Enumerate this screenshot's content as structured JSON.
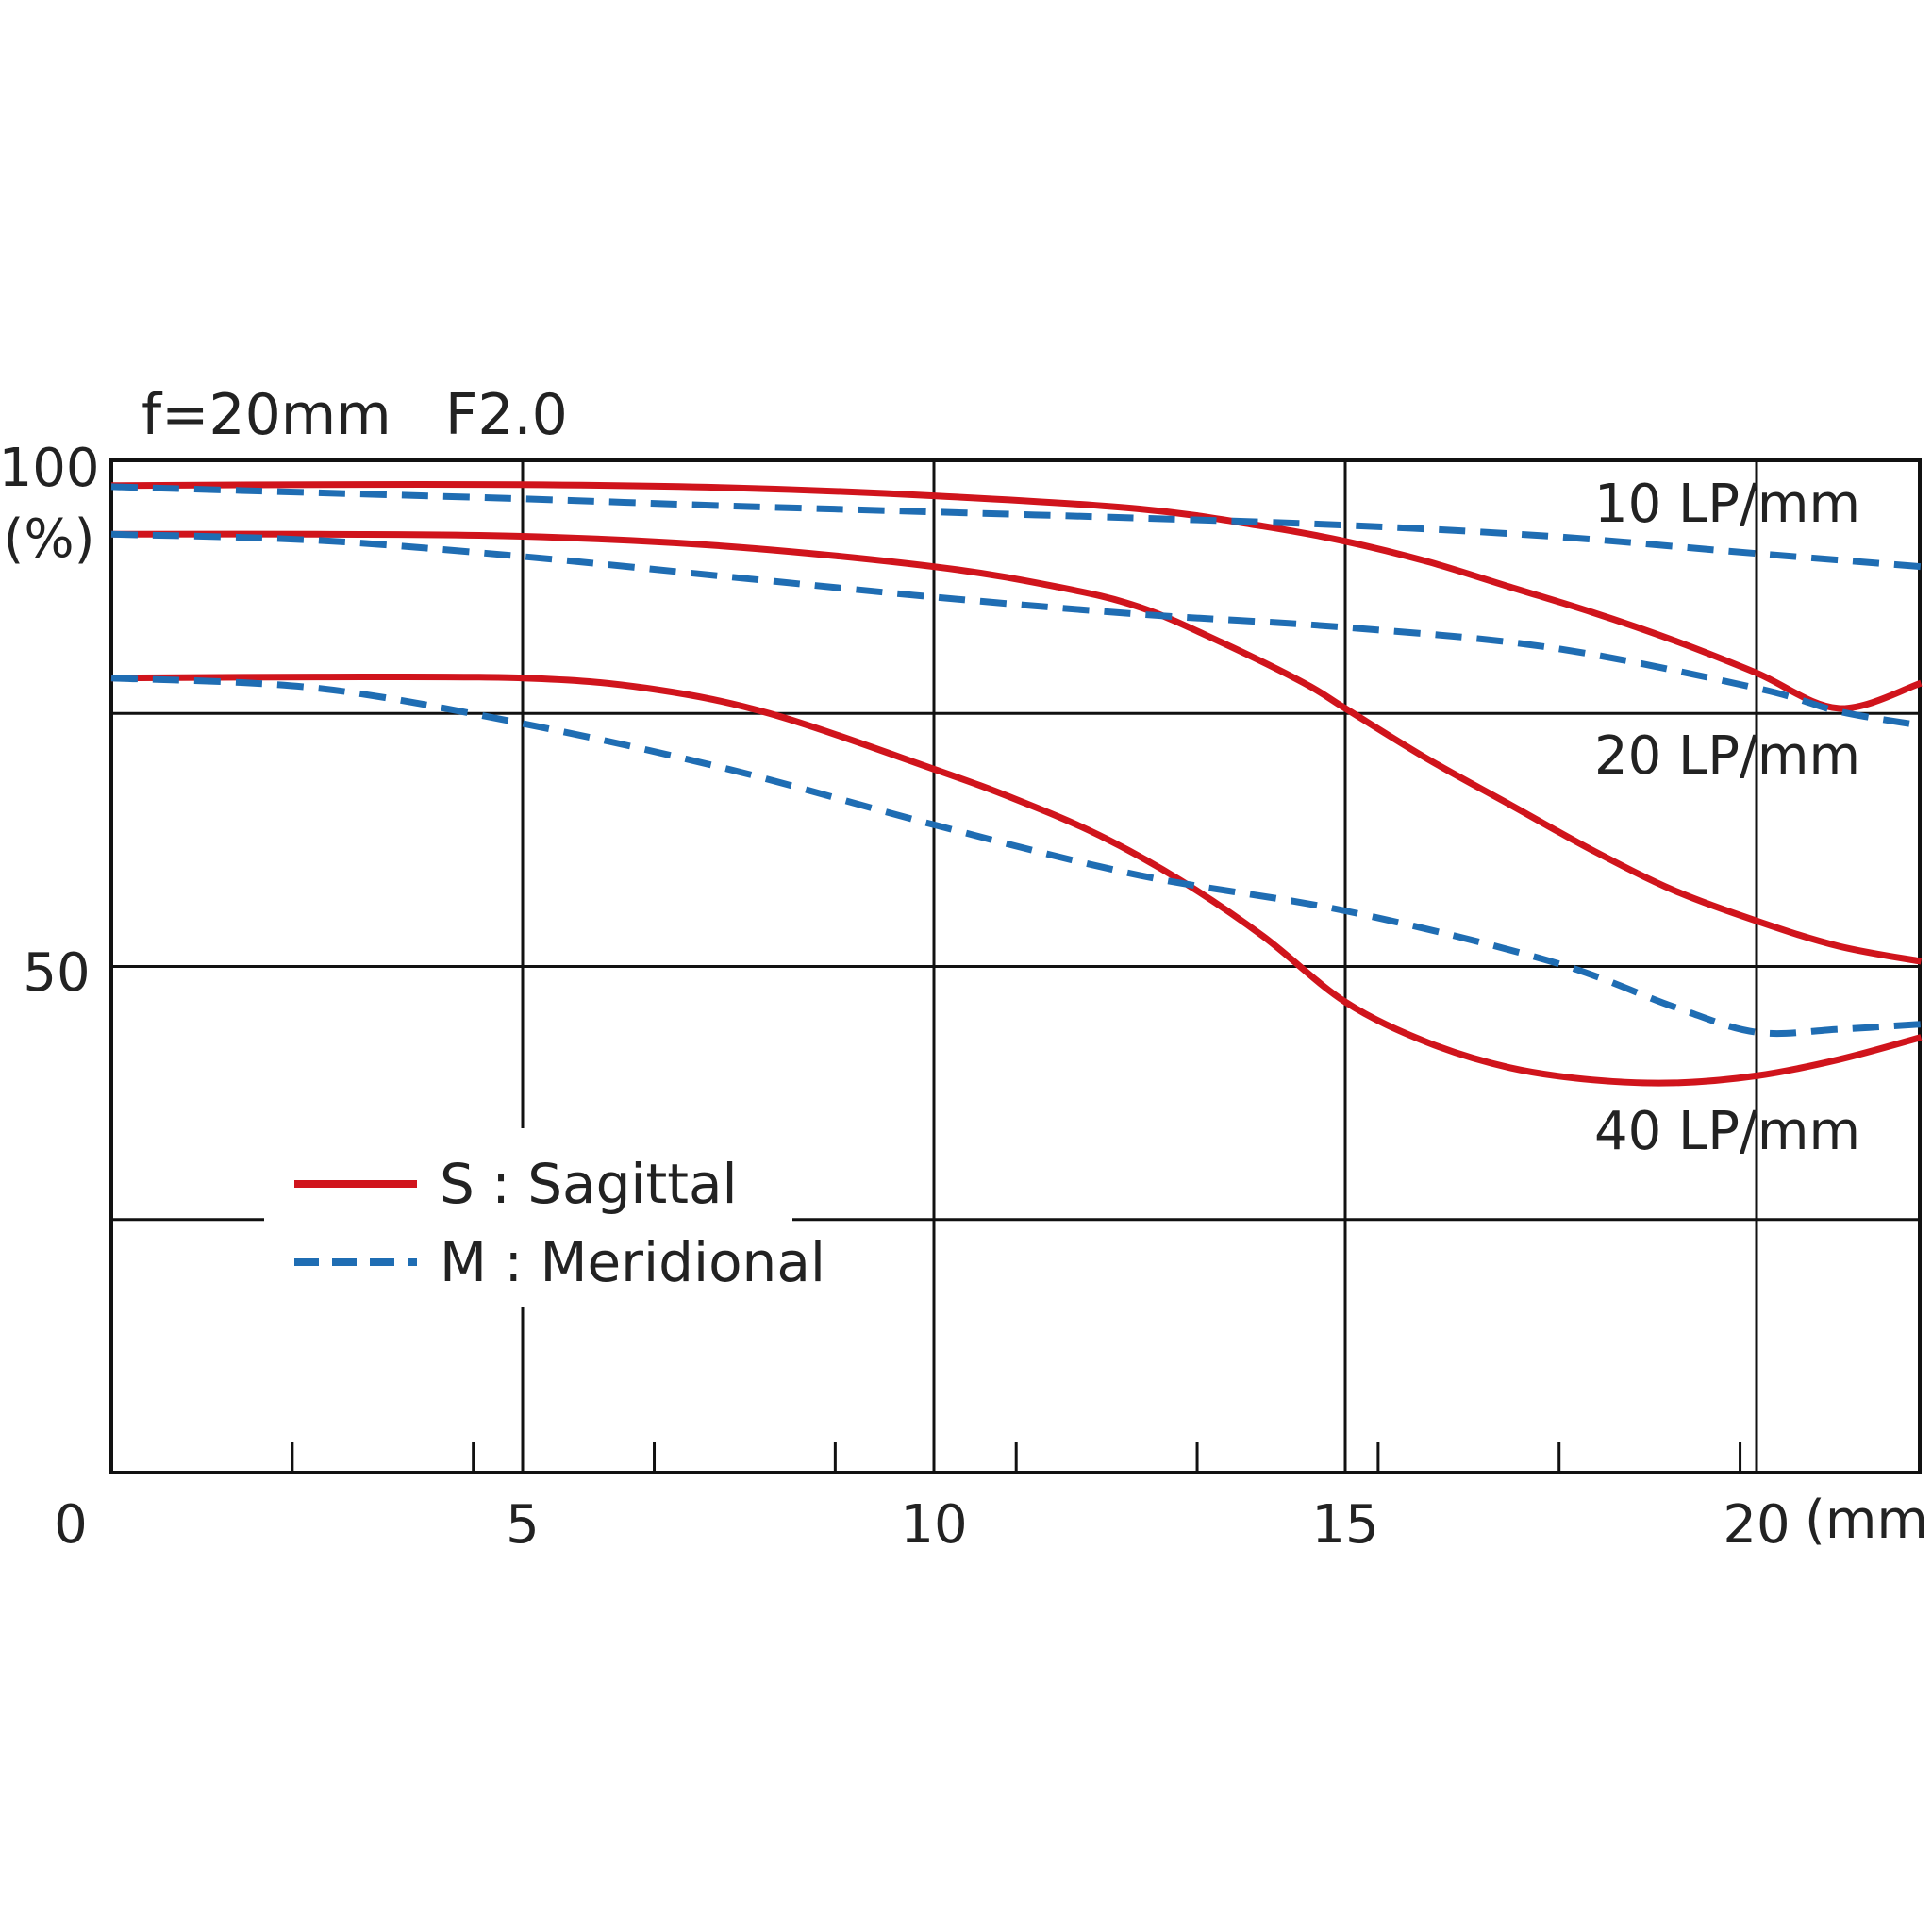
{
  "chart_data": {
    "type": "line",
    "title": "f=20mm   F2.0",
    "xlabel": "(mm)",
    "ylabel": "(%)",
    "xlim": [
      0,
      22
    ],
    "ylim": [
      0,
      100
    ],
    "x_ticks": [
      "0",
      "5",
      "10",
      "15",
      "20"
    ],
    "y_ticks": [
      "100",
      "50"
    ],
    "grid": true,
    "colors": {
      "sagittal": "#d0141c",
      "meridional": "#1f6db3"
    },
    "legend": [
      {
        "label": "S : Sagittal",
        "style": "solid",
        "color": "#d0141c"
      },
      {
        "label": "M : Meridional",
        "style": "dashed",
        "color": "#1f6db3"
      }
    ],
    "curve_labels": {
      "lp10": "10 LP/mm",
      "lp20": "20 LP/mm",
      "lp40": "40 LP/mm"
    },
    "series": [
      {
        "group": "10 LP/mm",
        "type": "sagittal",
        "x": [
          0,
          2.5,
          5,
          7.5,
          10,
          12.5,
          14,
          15,
          16,
          17,
          18,
          19,
          20,
          21,
          22
        ],
        "y": [
          97.5,
          97.6,
          97.6,
          97.3,
          96.5,
          95.2,
          93.5,
          92.0,
          90.0,
          87.5,
          85.0,
          82.2,
          79.0,
          75.5,
          78.0
        ]
      },
      {
        "group": "10 LP/mm",
        "type": "meridional",
        "x": [
          0,
          2.5,
          5,
          7.5,
          10,
          12.5,
          15,
          17.5,
          20,
          22
        ],
        "y": [
          97.4,
          96.8,
          96.2,
          95.5,
          94.9,
          94.3,
          93.6,
          92.5,
          90.8,
          89.5
        ]
      },
      {
        "group": "20 LP/mm",
        "type": "sagittal",
        "x": [
          0,
          2.5,
          5,
          7.5,
          10,
          11.5,
          12.5,
          13.5,
          14.5,
          15,
          16,
          17,
          18,
          19,
          20,
          21,
          22
        ],
        "y": [
          92.7,
          92.7,
          92.5,
          91.5,
          89.5,
          87.5,
          85.5,
          82.0,
          78.0,
          75.5,
          70.5,
          66.0,
          61.5,
          57.5,
          54.5,
          52.0,
          50.5
        ]
      },
      {
        "group": "20 LP/mm",
        "type": "meridional",
        "x": [
          0,
          2.5,
          5,
          7.5,
          10,
          12.5,
          15,
          17.5,
          20,
          21,
          22
        ],
        "y": [
          92.7,
          92.1,
          90.5,
          88.5,
          86.5,
          84.8,
          83.5,
          81.5,
          77.5,
          75.2,
          73.8
        ]
      },
      {
        "group": "40 LP/mm",
        "type": "sagittal",
        "x": [
          0,
          2.5,
          5,
          6.5,
          8,
          10,
          11,
          12,
          13,
          14,
          15,
          16,
          17,
          18,
          19,
          20,
          21,
          22
        ],
        "y": [
          78.5,
          78.6,
          78.5,
          77.5,
          75.0,
          69.5,
          66.5,
          63.0,
          58.5,
          53.0,
          46.5,
          42.5,
          40.0,
          38.8,
          38.5,
          39.2,
          40.8,
          43.0
        ]
      },
      {
        "group": "40 LP/mm",
        "type": "meridional",
        "x": [
          0,
          2.5,
          5,
          7.5,
          10,
          12.5,
          15,
          17.5,
          19,
          20,
          21,
          22
        ],
        "y": [
          78.5,
          77.5,
          74.0,
          69.5,
          64.0,
          59.0,
          55.5,
          50.5,
          46.0,
          43.5,
          43.8,
          44.3
        ]
      }
    ]
  }
}
